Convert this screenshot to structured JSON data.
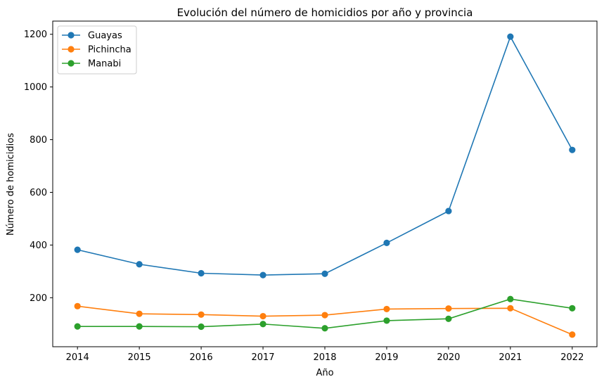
{
  "chart_data": {
    "type": "line",
    "title": "Evolución del número de homicidios por año y provincia",
    "xlabel": "Año",
    "ylabel": "Número de homicidios",
    "x": [
      2014,
      2015,
      2016,
      2017,
      2018,
      2019,
      2020,
      2021,
      2022
    ],
    "xlim": [
      2013.6,
      2022.4
    ],
    "ylim": [
      14,
      1250
    ],
    "yticks": [
      200,
      400,
      600,
      800,
      1000,
      1200
    ],
    "grid": false,
    "legend_position": "upper-left",
    "series": [
      {
        "name": "Guayas",
        "color": "#1f77b4",
        "values": [
          382,
          327,
          293,
          286,
          291,
          408,
          529,
          1191,
          761
        ]
      },
      {
        "name": "Pichincha",
        "color": "#ff7f0e",
        "values": [
          168,
          139,
          136,
          130,
          134,
          157,
          159,
          160,
          60
        ]
      },
      {
        "name": "Manabi",
        "color": "#2ca02c",
        "values": [
          91,
          91,
          90,
          100,
          84,
          113,
          120,
          195,
          160
        ]
      }
    ]
  }
}
